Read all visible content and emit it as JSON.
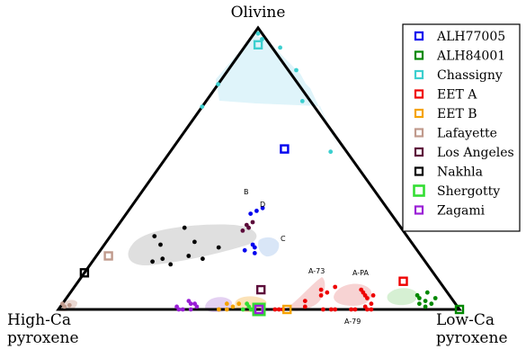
{
  "chart_data": {
    "type": "scatter",
    "subtype": "ternary",
    "vertex_labels": {
      "top": "Olivine",
      "left": [
        "High-Ca",
        "pyroxene"
      ],
      "right": [
        "Low-Ca",
        "pyroxene"
      ]
    },
    "field_labels": [
      "A-73",
      "A-PA",
      "A-79",
      "B",
      "C",
      "D"
    ],
    "legend": {
      "position": "top-right",
      "entries": [
        {
          "name": "ALH77005",
          "color": "#0000ee"
        },
        {
          "name": "ALH84001",
          "color": "#008800"
        },
        {
          "name": "Chassigny",
          "color": "#3ccfcf"
        },
        {
          "name": "EET A",
          "color": "#ee0000"
        },
        {
          "name": "EET B",
          "color": "#f5a300"
        },
        {
          "name": "Lafayette",
          "color": "#c09a8c"
        },
        {
          "name": "Los Angeles",
          "color": "#5c0a3a"
        },
        {
          "name": "Nakhla",
          "color": "#000000"
        },
        {
          "name": "Shergotty",
          "color": "#33dd33"
        },
        {
          "name": "Zagami",
          "color": "#9a1fd6"
        }
      ]
    },
    "bulk_compositions": [
      {
        "sample": "ALH77005",
        "olivine": 0.57,
        "lowca": 0.28
      },
      {
        "sample": "ALH84001",
        "olivine": 0.0,
        "lowca": 1.0
      },
      {
        "sample": "Chassigny",
        "olivine": 0.94,
        "lowca": 0.03
      },
      {
        "sample": "EET A",
        "olivine": 0.1,
        "lowca": 0.81
      },
      {
        "sample": "EET B",
        "olivine": 0.0,
        "lowca": 0.57
      },
      {
        "sample": "Lafayette",
        "olivine": 0.19,
        "lowca": 0.03
      },
      {
        "sample": "Los Angeles",
        "olivine": 0.07,
        "lowca": 0.47
      },
      {
        "sample": "Nakhla",
        "olivine": 0.13,
        "lowca": 0.0
      },
      {
        "sample": "Shergotty",
        "olivine": 0.0,
        "lowca": 0.5
      },
      {
        "sample": "Zagami",
        "olivine": 0.0,
        "lowca": 0.5
      }
    ],
    "mineral_analyses": [
      {
        "sample": "Chassigny",
        "points": [
          [
            0.96,
            0.03
          ],
          [
            0.98,
            0.01
          ],
          [
            0.93,
            0.09
          ],
          [
            0.8,
            0.0
          ],
          [
            0.72,
            0.0
          ],
          [
            0.85,
            0.17
          ],
          [
            0.74,
            0.24
          ],
          [
            0.56,
            0.4
          ]
        ]
      },
      {
        "sample": "Nakhla",
        "points": [
          [
            0.29,
            0.17
          ],
          [
            0.26,
            0.11
          ],
          [
            0.24,
            0.22
          ],
          [
            0.23,
            0.14
          ],
          [
            0.22,
            0.29
          ],
          [
            0.18,
            0.27
          ],
          [
            0.16,
            0.2
          ],
          [
            0.18,
            0.17
          ],
          [
            0.17,
            0.15
          ],
          [
            0.19,
            0.23
          ]
        ]
      },
      {
        "sample": "Lafayette",
        "points": [
          [
            0.015,
            0.02
          ],
          [
            0.02,
            0.0
          ],
          [
            0.01,
            0.01
          ]
        ]
      },
      {
        "sample": "ALH77005",
        "points": [
          [
            0.35,
            0.32
          ],
          [
            0.36,
            0.33
          ],
          [
            0.34,
            0.31
          ],
          [
            0.21,
            0.36
          ],
          [
            0.22,
            0.38
          ],
          [
            0.2,
            0.39
          ],
          [
            0.23,
            0.37
          ]
        ]
      },
      {
        "sample": "Los Angeles",
        "points": [
          [
            0.31,
            0.33
          ],
          [
            0.3,
            0.32
          ],
          [
            0.29,
            0.33
          ],
          [
            0.28,
            0.32
          ]
        ]
      },
      {
        "sample": "Zagami",
        "points": [
          [
            0.02,
            0.32
          ],
          [
            0.0,
            0.3
          ],
          [
            0.01,
            0.29
          ],
          [
            0.02,
            0.33
          ],
          [
            0.0,
            0.31
          ],
          [
            0.03,
            0.31
          ],
          [
            0.01,
            0.34
          ],
          [
            0.0,
            0.33
          ]
        ]
      },
      {
        "sample": "EET B",
        "points": [
          [
            0.02,
            0.41
          ],
          [
            0.0,
            0.42
          ],
          [
            0.01,
            0.43
          ],
          [
            0.02,
            0.44
          ],
          [
            0.0,
            0.4
          ]
        ]
      },
      {
        "sample": "Shergotty",
        "points": [
          [
            0.0,
            0.46
          ],
          [
            0.01,
            0.47
          ],
          [
            0.0,
            0.48
          ],
          [
            0.02,
            0.46
          ],
          [
            0.0,
            0.51
          ]
        ]
      },
      {
        "sample": "EET A",
        "points": [
          [
            0.06,
            0.64
          ],
          [
            0.07,
            0.62
          ],
          [
            0.08,
            0.65
          ],
          [
            0.05,
            0.63
          ],
          [
            0.03,
            0.6
          ],
          [
            0.01,
            0.61
          ],
          [
            0.0,
            0.56
          ],
          [
            0.0,
            0.54
          ],
          [
            0.0,
            0.55
          ],
          [
            0.0,
            0.66
          ],
          [
            0.0,
            0.68
          ],
          [
            0.0,
            0.69
          ],
          [
            0.0,
            0.74
          ],
          [
            0.0,
            0.73
          ],
          [
            0.06,
            0.73
          ],
          [
            0.05,
            0.74
          ],
          [
            0.04,
            0.75
          ],
          [
            0.07,
            0.72
          ],
          [
            0.05,
            0.76
          ],
          [
            0.02,
            0.77
          ],
          [
            0.01,
            0.76
          ],
          [
            0.0,
            0.77
          ],
          [
            0.0,
            0.78
          ]
        ]
      },
      {
        "sample": "ALH84001",
        "points": [
          [
            0.05,
            0.87
          ],
          [
            0.04,
            0.88
          ],
          [
            0.02,
            0.89
          ],
          [
            0.03,
            0.9
          ],
          [
            0.06,
            0.89
          ],
          [
            0.02,
            0.92
          ],
          [
            0.01,
            0.91
          ],
          [
            0.04,
            0.92
          ]
        ]
      }
    ]
  }
}
